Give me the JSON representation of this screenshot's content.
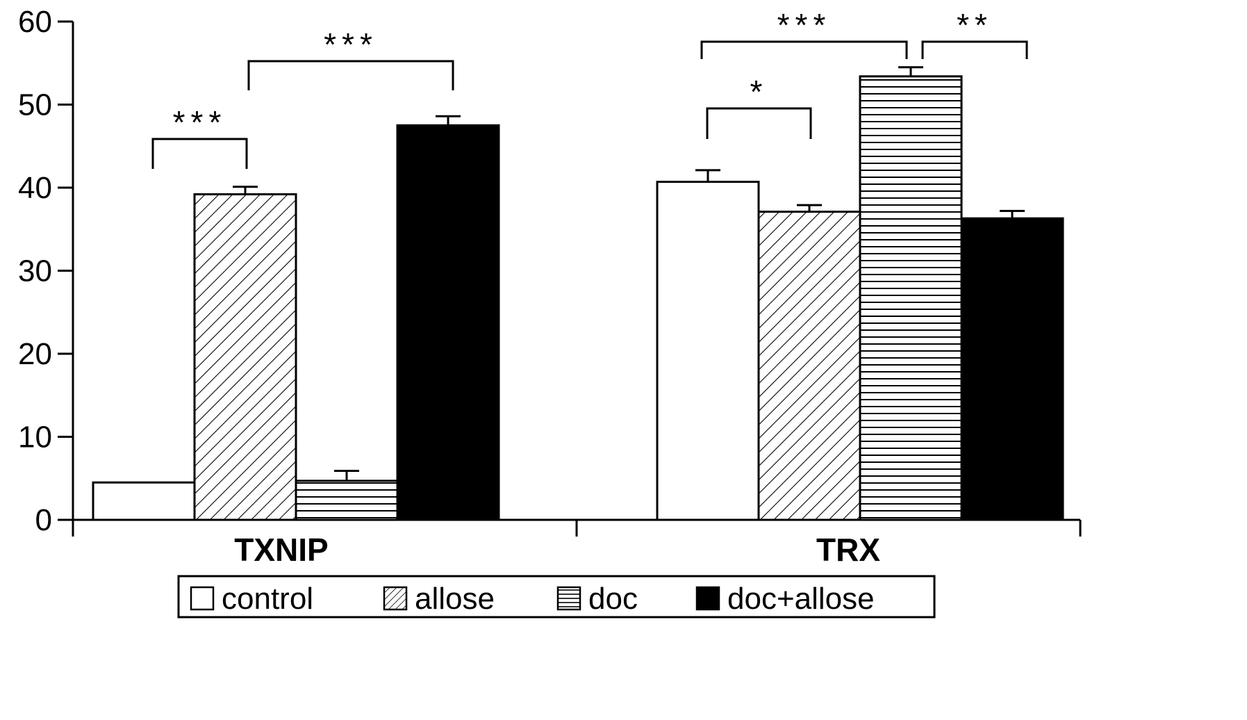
{
  "chart_data": {
    "type": "bar",
    "title": "",
    "xlabel": "",
    "ylabel": "",
    "ylim": [
      0,
      60
    ],
    "yticks": [
      0,
      10,
      20,
      30,
      40,
      50,
      60
    ],
    "grid": false,
    "legend_position": "bottom",
    "categories": [
      "TXNIP",
      "TRX"
    ],
    "series": [
      {
        "name": "control",
        "pattern": "solid-white",
        "color": "#ffffff",
        "values": [
          4.5,
          40.7
        ],
        "errors": [
          0,
          1.4
        ]
      },
      {
        "name": "allose",
        "pattern": "diagonal-hatch",
        "color": "#ffffff",
        "values": [
          39.2,
          37.1
        ],
        "errors": [
          0.9,
          0.8
        ]
      },
      {
        "name": "doc",
        "pattern": "horizontal-hatch",
        "color": "#ffffff",
        "values": [
          4.7,
          53.4
        ],
        "errors": [
          1.2,
          1.1
        ]
      },
      {
        "name": "doc+allose",
        "pattern": "solid-black",
        "color": "#000000",
        "values": [
          47.5,
          36.3
        ],
        "errors": [
          1.1,
          0.9
        ]
      }
    ],
    "significance": [
      {
        "category": "TXNIP",
        "from": "control",
        "to": "allose",
        "label": "***"
      },
      {
        "category": "TXNIP",
        "from": "allose",
        "to": "doc+allose",
        "label": "***"
      },
      {
        "category": "TRX",
        "from": "control",
        "to": "allose",
        "label": "*"
      },
      {
        "category": "TRX",
        "from": "control",
        "to": "doc",
        "label": "***"
      },
      {
        "category": "TRX",
        "from": "doc",
        "to": "doc+allose",
        "label": "**"
      }
    ]
  }
}
